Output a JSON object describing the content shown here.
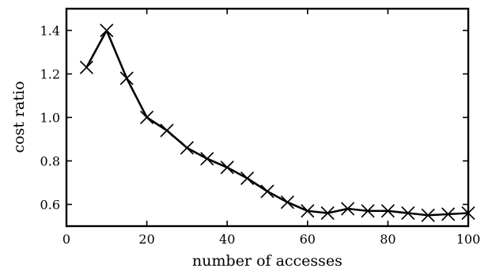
{
  "chart_data": {
    "type": "line",
    "title": "",
    "xlabel": "number of accesses",
    "ylabel": "cost ratio",
    "xlim": [
      0,
      100
    ],
    "ylim": [
      0.5,
      1.5
    ],
    "xticks": [
      0,
      20,
      40,
      60,
      80,
      100
    ],
    "yticks": [
      0.6,
      0.8,
      1.0,
      1.2,
      1.4
    ],
    "xtick_labels": [
      "0",
      "20",
      "40",
      "60",
      "80",
      "100"
    ],
    "ytick_labels": [
      "0.6",
      "0.8",
      "1.0",
      "1.2",
      "1.4"
    ],
    "grid": false,
    "legend": "none",
    "marker": "x",
    "color": "#000000",
    "series": [
      {
        "x": [
          5,
          10,
          15,
          20,
          25,
          30,
          35,
          40,
          45,
          50,
          55,
          60,
          65,
          70,
          75,
          80,
          85,
          90,
          95,
          100
        ],
        "values": [
          1.23,
          1.4,
          1.18,
          1.0,
          0.94,
          0.86,
          0.81,
          0.77,
          0.72,
          0.66,
          0.61,
          0.57,
          0.56,
          0.58,
          0.57,
          0.57,
          0.56,
          0.55,
          0.555,
          0.56
        ]
      }
    ]
  }
}
